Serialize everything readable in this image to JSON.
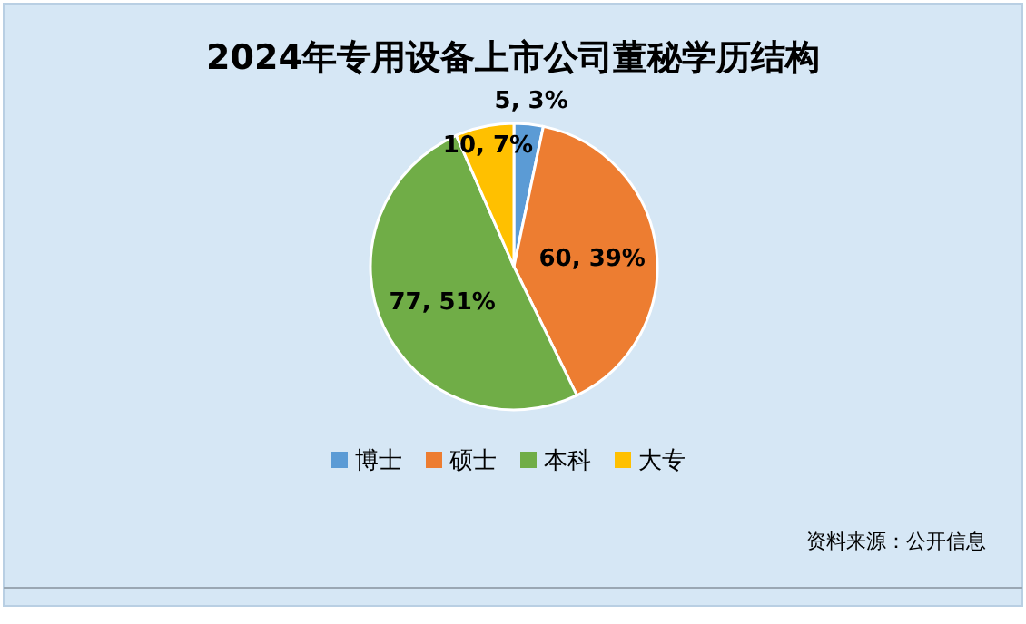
{
  "chart_data": {
    "type": "pie",
    "title": "2024年专用设备上市公司董秘学历结构",
    "categories": [
      "博士",
      "硕士",
      "本科",
      "大专"
    ],
    "values": [
      5,
      60,
      77,
      10
    ],
    "colors": [
      "#5b9bd5",
      "#ed7d31",
      "#70ad47",
      "#ffc000"
    ],
    "value_labels": [
      "5, 3%",
      "60, 39%",
      "77, 51%",
      "10, 7%"
    ],
    "legend": "bottom",
    "annotations": [
      "资料来源：公开信息"
    ]
  }
}
